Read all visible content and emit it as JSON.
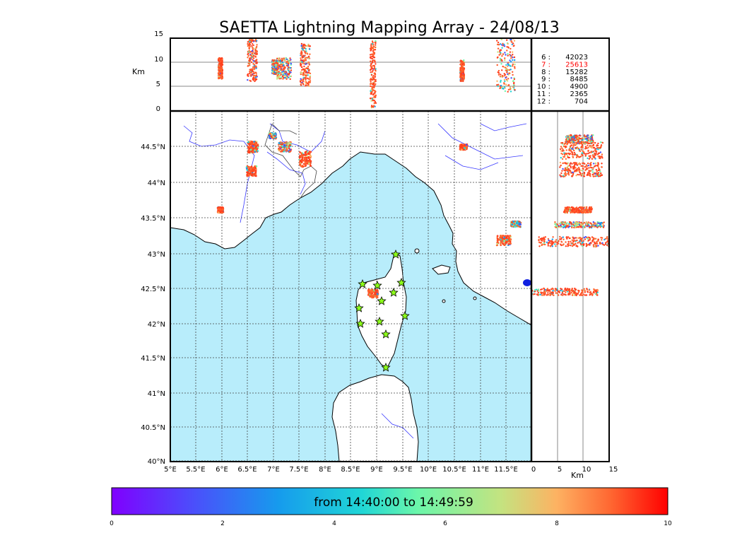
{
  "title": "SAETTA Lightning Mapping Array - 24/08/13",
  "altitude_panel": {
    "y_label": "Km",
    "y_ticks": [
      "15",
      "10",
      "5",
      "0"
    ]
  },
  "side_panel": {
    "x_label": "Km",
    "x_ticks": [
      "0",
      "5",
      "10",
      "15"
    ]
  },
  "map": {
    "lat_labels": [
      "44.5°N",
      "44°N",
      "43.5°N",
      "43°N",
      "42.5°N",
      "42°N",
      "41.5°N",
      "41°N",
      "40.5°N",
      "40°N"
    ],
    "lon_labels": [
      "5°E",
      "5.5°E",
      "6°E",
      "6.5°E",
      "7°E",
      "7.5°E",
      "8°E",
      "8.5°E",
      "9°E",
      "9.5°E",
      "10°E",
      "10.5°E",
      "11°E",
      "11.5°E"
    ]
  },
  "counts": [
    {
      "label": "6  :",
      "value": "42023",
      "highlight": false
    },
    {
      "label": "7  :",
      "value": "25613",
      "highlight": true
    },
    {
      "label": "8  :",
      "value": "15282",
      "highlight": false
    },
    {
      "label": "9  :",
      "value": "8485",
      "highlight": false
    },
    {
      "label": "10 :",
      "value": "4900",
      "highlight": false
    },
    {
      "label": "11 :",
      "value": "2365",
      "highlight": false
    },
    {
      "label": "12 :",
      "value": "704",
      "highlight": false
    }
  ],
  "colorbar": {
    "label": "from 14:40:00 to 14:49:59",
    "ticks": [
      "0",
      "2",
      "4",
      "6",
      "8",
      "10"
    ]
  },
  "colors": {
    "sea": "#b8edfb",
    "land": "#ffffff",
    "river": "#3a3aff",
    "highlight": "#ff0000"
  }
}
